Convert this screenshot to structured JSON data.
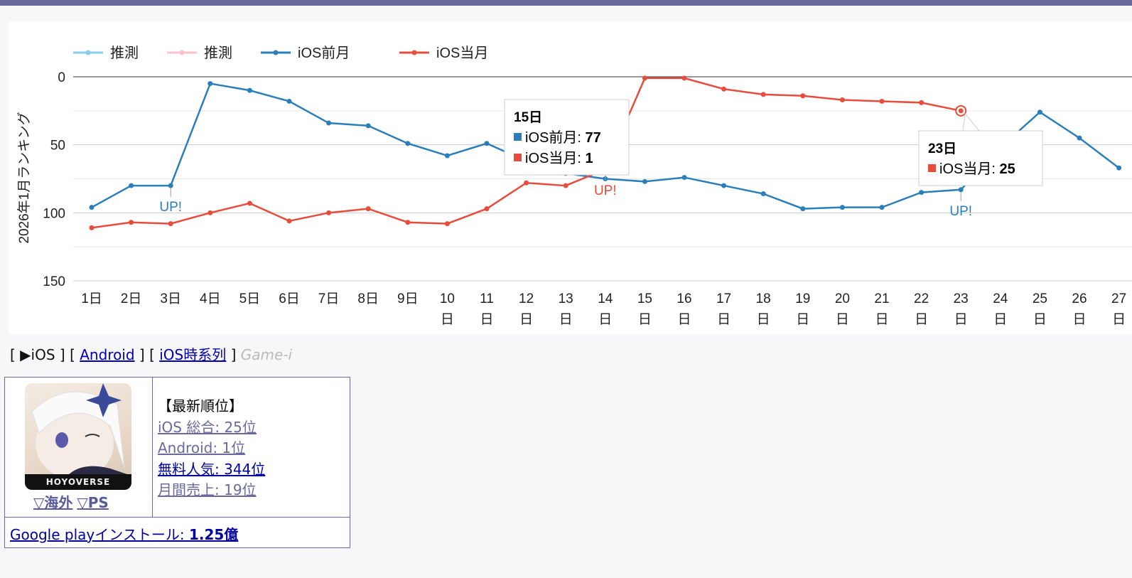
{
  "chart_data": {
    "type": "line",
    "ylabel": "2026年1月ランキング",
    "ylim": [
      0,
      150
    ],
    "y_inverted": true,
    "yticks": [
      0,
      50,
      100,
      150
    ],
    "grid": true,
    "legend_position": "top-left",
    "legend": [
      {
        "name": "推測",
        "color": "#87ceeb"
      },
      {
        "name": "推測",
        "color": "#ffc0cb"
      },
      {
        "name": "iOS前月",
        "color": "#2a7fba"
      },
      {
        "name": "iOS当月",
        "color": "#e74c3c"
      }
    ],
    "categories": [
      "1日",
      "2日",
      "3日",
      "4日",
      "5日",
      "6日",
      "7日",
      "8日",
      "9日",
      "10日",
      "11日",
      "12日",
      "13日",
      "14日",
      "15日",
      "16日",
      "17日",
      "18日",
      "19日",
      "20日",
      "21日",
      "22日",
      "23日",
      "24日",
      "25日",
      "26日",
      "27日"
    ],
    "series": [
      {
        "name": "iOS前月",
        "color": "#2a7fba",
        "values": [
          96,
          80,
          80,
          5,
          10,
          18,
          34,
          36,
          49,
          58,
          49,
          62,
          71,
          75,
          77,
          74,
          80,
          86,
          97,
          96,
          96,
          85,
          83,
          52,
          26,
          45,
          67
        ]
      },
      {
        "name": "iOS当月",
        "color": "#e74c3c",
        "values": [
          111,
          107,
          108,
          100,
          93,
          106,
          100,
          97,
          107,
          108,
          97,
          78,
          80,
          68,
          1,
          1,
          9,
          13,
          14,
          17,
          18,
          19,
          25,
          null,
          null,
          null,
          null
        ]
      }
    ],
    "annotations": [
      {
        "series": "iOS前月",
        "day": "3日",
        "text": "UP!"
      },
      {
        "series": "iOS当月",
        "day": "14日",
        "text": "UP!"
      },
      {
        "series": "iOS前月",
        "day": "23日",
        "text": "UP!"
      }
    ],
    "tooltips": [
      {
        "title": "15日",
        "rows": [
          {
            "label": "iOS前月: ",
            "value": "77",
            "color": "#2a7fba"
          },
          {
            "label": "iOS当月: ",
            "value": "1",
            "color": "#e74c3c"
          }
        ]
      },
      {
        "title": "23日",
        "rows": [
          {
            "label": "iOS当月: ",
            "value": "25",
            "color": "#e74c3c"
          }
        ]
      }
    ]
  },
  "nav": {
    "current": "▶iOS",
    "android": "Android",
    "timeseries": "iOS時系列",
    "credit": "Game-i"
  },
  "app": {
    "icon_logo": "HOYOVERSE",
    "link_overseas": "▽海外",
    "link_ps": "▽PS",
    "rank_heading": "【最新順位】",
    "ranks": [
      "iOS 総合: 25位",
      "Android: 1位",
      "無料人気: 344位",
      "月間売上: 19位"
    ],
    "install_label": "Google playインストール: ",
    "install_value": "1.25億"
  }
}
